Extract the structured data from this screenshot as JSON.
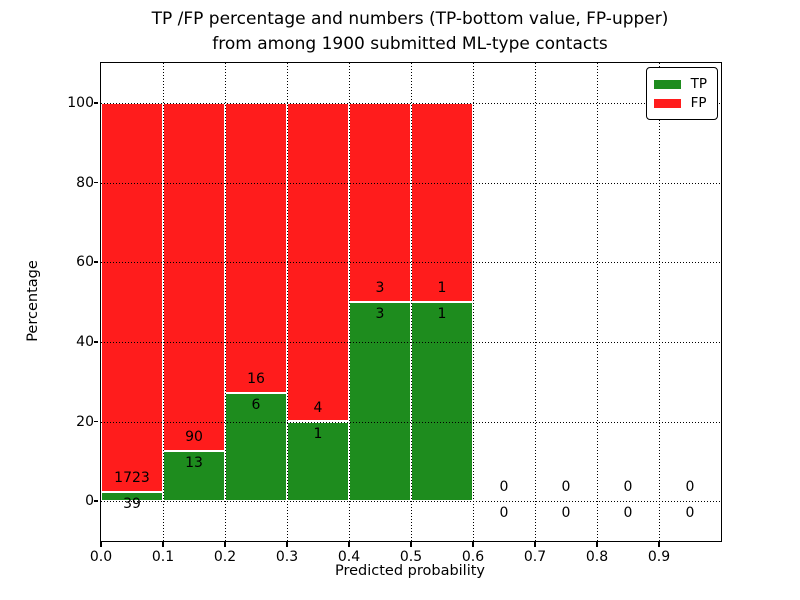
{
  "title": {
    "line1": "TP /FP percentage and numbers (TP-bottom value, FP-upper)",
    "line2": "from among 1900 submitted ML-type contacts"
  },
  "axes": {
    "xlabel": "Predicted probability",
    "ylabel": "Percentage"
  },
  "legend": {
    "position": "upper-right",
    "items": [
      {
        "label": "TP",
        "color": "#1e8c1e"
      },
      {
        "label": "FP",
        "color": "#ff1c1c"
      }
    ]
  },
  "chart_data": {
    "type": "bar",
    "stacked": true,
    "stack_normalized_to": 100,
    "title": "TP /FP percentage and numbers (TP-bottom value, FP-upper) from among 1900 submitted ML-type contacts",
    "xlabel": "Predicted probability",
    "ylabel": "Percentage",
    "xlim": [
      0.0,
      1.0
    ],
    "ylim": [
      -10,
      110
    ],
    "x_ticks": [
      "0.0",
      "0.1",
      "0.2",
      "0.3",
      "0.4",
      "0.5",
      "0.6",
      "0.7",
      "0.8",
      "0.9"
    ],
    "y_ticks": [
      "0",
      "20",
      "40",
      "60",
      "80",
      "100"
    ],
    "grid": "dotted black, drawn above bars",
    "bar_edge_color": "#ffffff",
    "total_submitted_contacts": 1900,
    "series_colors": {
      "TP": "#1e8c1e",
      "FP": "#ff1c1c"
    },
    "bins": [
      {
        "range": [
          0.0,
          0.1
        ],
        "tp": 39,
        "fp": 1723
      },
      {
        "range": [
          0.1,
          0.2
        ],
        "tp": 13,
        "fp": 90
      },
      {
        "range": [
          0.2,
          0.3
        ],
        "tp": 6,
        "fp": 16
      },
      {
        "range": [
          0.3,
          0.4
        ],
        "tp": 1,
        "fp": 4
      },
      {
        "range": [
          0.4,
          0.5
        ],
        "tp": 3,
        "fp": 3
      },
      {
        "range": [
          0.5,
          0.6
        ],
        "tp": 1,
        "fp": 1
      },
      {
        "range": [
          0.6,
          0.7
        ],
        "tp": 0,
        "fp": 0
      },
      {
        "range": [
          0.7,
          0.8
        ],
        "tp": 0,
        "fp": 0
      },
      {
        "range": [
          0.8,
          0.9
        ],
        "tp": 0,
        "fp": 0
      },
      {
        "range": [
          0.9,
          1.0
        ],
        "tp": 0,
        "fp": 0
      }
    ]
  }
}
